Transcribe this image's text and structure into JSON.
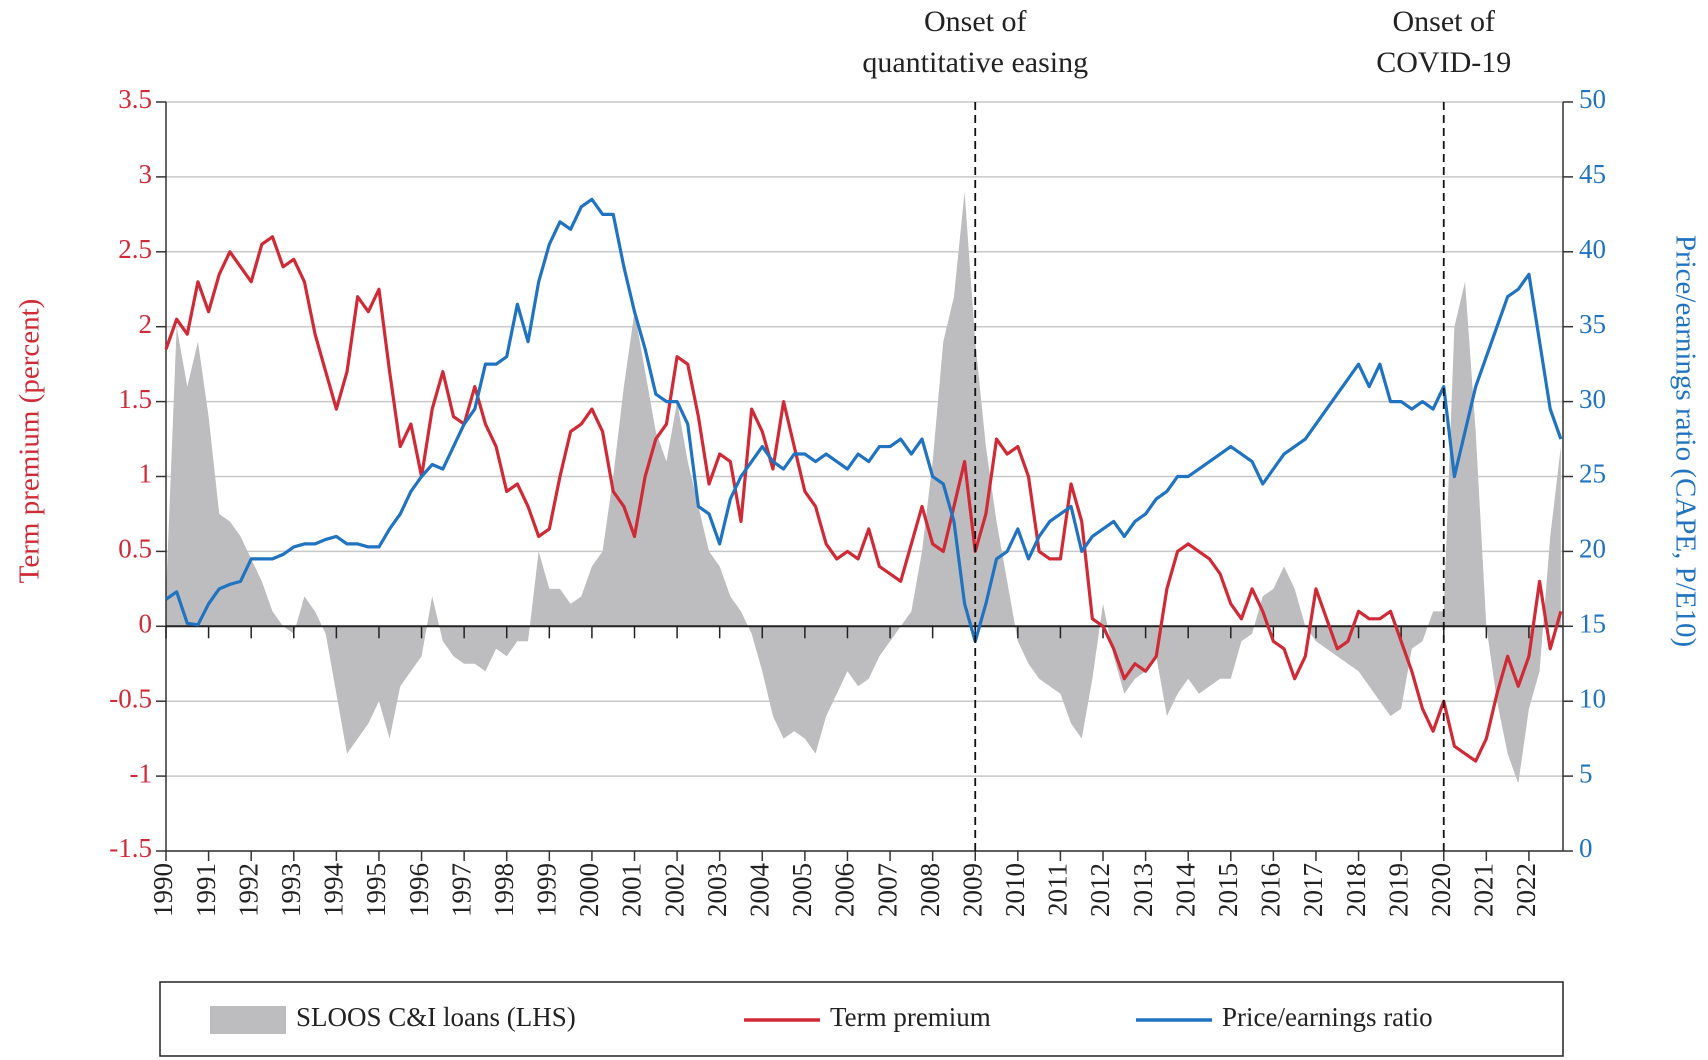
{
  "chart_data": {
    "type": "line",
    "left_axis_label": "Term premium (percent)",
    "right_axis_label": "Price/earnings ratio (CAPE, P/E10)",
    "x": [
      1990,
      1990.25,
      1990.5,
      1990.75,
      1991,
      1991.25,
      1991.5,
      1991.75,
      1992,
      1992.25,
      1992.5,
      1992.75,
      1993,
      1993.25,
      1993.5,
      1993.75,
      1994,
      1994.25,
      1994.5,
      1994.75,
      1995,
      1995.25,
      1995.5,
      1995.75,
      1996,
      1996.25,
      1996.5,
      1996.75,
      1997,
      1997.25,
      1997.5,
      1997.75,
      1998,
      1998.25,
      1998.5,
      1998.75,
      1999,
      1999.25,
      1999.5,
      1999.75,
      2000,
      2000.25,
      2000.5,
      2000.75,
      2001,
      2001.25,
      2001.5,
      2001.75,
      2002,
      2002.25,
      2002.5,
      2002.75,
      2003,
      2003.25,
      2003.5,
      2003.75,
      2004,
      2004.25,
      2004.5,
      2004.75,
      2005,
      2005.25,
      2005.5,
      2005.75,
      2006,
      2006.25,
      2006.5,
      2006.75,
      2007,
      2007.25,
      2007.5,
      2007.75,
      2008,
      2008.25,
      2008.5,
      2008.75,
      2009,
      2009.25,
      2009.5,
      2009.75,
      2010,
      2010.25,
      2010.5,
      2010.75,
      2011,
      2011.25,
      2011.5,
      2011.75,
      2012,
      2012.25,
      2012.5,
      2012.75,
      2013,
      2013.25,
      2013.5,
      2013.75,
      2014,
      2014.25,
      2014.5,
      2014.75,
      2015,
      2015.25,
      2015.5,
      2015.75,
      2016,
      2016.25,
      2016.5,
      2016.75,
      2017,
      2017.25,
      2017.5,
      2017.75,
      2018,
      2018.25,
      2018.5,
      2018.75,
      2019,
      2019.25,
      2019.5,
      2019.75,
      2020,
      2020.25,
      2020.5,
      2020.75,
      2021,
      2021.25,
      2021.5,
      2021.75,
      2022,
      2022.25,
      2022.5,
      2022.75
    ],
    "series": [
      {
        "name": "SLOOS C&I loans (LHS)",
        "type": "area",
        "color": "#bdbdbf",
        "axis": "y",
        "values": [
          0.2,
          2.0,
          1.6,
          1.9,
          1.4,
          0.75,
          0.7,
          0.6,
          0.45,
          0.3,
          0.1,
          0.0,
          -0.05,
          0.2,
          0.1,
          -0.05,
          -0.45,
          -0.85,
          -0.75,
          -0.65,
          -0.5,
          -0.75,
          -0.4,
          -0.3,
          -0.2,
          0.2,
          -0.1,
          -0.2,
          -0.25,
          -0.25,
          -0.3,
          -0.15,
          -0.2,
          -0.1,
          -0.1,
          0.5,
          0.25,
          0.25,
          0.15,
          0.2,
          0.4,
          0.5,
          1.0,
          1.6,
          2.1,
          1.7,
          1.3,
          1.1,
          1.5,
          1.1,
          0.8,
          0.5,
          0.4,
          0.2,
          0.1,
          -0.05,
          -0.3,
          -0.6,
          -0.75,
          -0.7,
          -0.75,
          -0.85,
          -0.6,
          -0.45,
          -0.3,
          -0.4,
          -0.35,
          -0.2,
          -0.1,
          0.0,
          0.1,
          0.5,
          1.1,
          1.9,
          2.2,
          2.9,
          1.9,
          1.2,
          0.7,
          0.3,
          -0.1,
          -0.25,
          -0.35,
          -0.4,
          -0.45,
          -0.65,
          -0.75,
          -0.35,
          0.15,
          -0.2,
          -0.45,
          -0.35,
          -0.3,
          -0.2,
          -0.6,
          -0.45,
          -0.35,
          -0.45,
          -0.4,
          -0.35,
          -0.35,
          -0.1,
          -0.05,
          0.2,
          0.25,
          0.4,
          0.25,
          0.0,
          -0.1,
          -0.15,
          -0.2,
          -0.25,
          -0.3,
          -0.4,
          -0.5,
          -0.6,
          -0.55,
          -0.15,
          -0.1,
          0.1,
          0.1,
          2.0,
          2.3,
          1.3,
          0.0,
          -0.5,
          -0.85,
          -1.05,
          -0.55,
          -0.3,
          0.6,
          1.2
        ]
      },
      {
        "name": "Term premium",
        "type": "line",
        "color": "#cf2a36",
        "axis": "y",
        "values": [
          1.85,
          2.05,
          1.95,
          2.3,
          2.1,
          2.35,
          2.5,
          2.4,
          2.3,
          2.55,
          2.6,
          2.4,
          2.45,
          2.3,
          1.95,
          1.7,
          1.45,
          1.7,
          2.2,
          2.1,
          2.25,
          1.7,
          1.2,
          1.35,
          1.0,
          1.45,
          1.7,
          1.4,
          1.35,
          1.6,
          1.35,
          1.2,
          0.9,
          0.95,
          0.8,
          0.6,
          0.65,
          1.0,
          1.3,
          1.35,
          1.45,
          1.3,
          0.9,
          0.8,
          0.6,
          1.0,
          1.25,
          1.35,
          1.8,
          1.75,
          1.4,
          0.95,
          1.15,
          1.1,
          0.7,
          1.45,
          1.3,
          1.05,
          1.5,
          1.2,
          0.9,
          0.8,
          0.55,
          0.45,
          0.5,
          0.45,
          0.65,
          0.4,
          0.35,
          0.3,
          0.55,
          0.8,
          0.55,
          0.5,
          0.8,
          1.1,
          0.5,
          0.75,
          1.25,
          1.15,
          1.2,
          1.0,
          0.5,
          0.45,
          0.45,
          0.95,
          0.7,
          0.05,
          0.0,
          -0.15,
          -0.35,
          -0.25,
          -0.3,
          -0.2,
          0.25,
          0.5,
          0.55,
          0.5,
          0.45,
          0.35,
          0.15,
          0.05,
          0.25,
          0.1,
          -0.1,
          -0.15,
          -0.35,
          -0.2,
          0.25,
          0.05,
          -0.15,
          -0.1,
          0.1,
          0.05,
          0.05,
          0.1,
          -0.1,
          -0.3,
          -0.55,
          -0.7,
          -0.5,
          -0.8,
          -0.85,
          -0.9,
          -0.75,
          -0.45,
          -0.2,
          -0.4,
          -0.2,
          0.3,
          -0.15,
          0.1
        ]
      },
      {
        "name": "Price/earnings ratio",
        "type": "line",
        "color": "#1f73c0",
        "axis": "y2",
        "values": [
          16.8,
          17.3,
          15.2,
          15.1,
          16.5,
          17.5,
          17.8,
          18.0,
          19.5,
          19.5,
          19.5,
          19.8,
          20.3,
          20.5,
          20.5,
          20.8,
          21.0,
          20.5,
          20.5,
          20.3,
          20.3,
          21.5,
          22.5,
          24.0,
          25.0,
          25.8,
          25.5,
          27.0,
          28.5,
          29.5,
          32.5,
          32.5,
          33.0,
          36.5,
          34.0,
          38.0,
          40.5,
          42.0,
          41.5,
          43.0,
          43.5,
          42.5,
          42.5,
          39.0,
          36.0,
          33.5,
          30.5,
          30.0,
          30.0,
          28.5,
          23.0,
          22.5,
          20.5,
          23.5,
          25.0,
          26.0,
          27.0,
          26.0,
          25.5,
          26.5,
          26.5,
          26.0,
          26.5,
          26.0,
          25.5,
          26.5,
          26.0,
          27.0,
          27.0,
          27.5,
          26.5,
          27.5,
          25.0,
          24.5,
          22.0,
          16.5,
          14.0,
          16.5,
          19.5,
          20.0,
          21.5,
          19.5,
          21.0,
          22.0,
          22.5,
          23.0,
          20.0,
          21.0,
          21.5,
          22.0,
          21.0,
          22.0,
          22.5,
          23.5,
          24.0,
          25.0,
          25.0,
          25.5,
          26.0,
          26.5,
          27.0,
          26.5,
          26.0,
          24.5,
          25.5,
          26.5,
          27.0,
          27.5,
          28.5,
          29.5,
          30.5,
          31.5,
          32.5,
          31.0,
          32.5,
          30.0,
          30.0,
          29.5,
          30.0,
          29.5,
          31.0,
          25.0,
          28.0,
          31.0,
          33.0,
          35.0,
          37.0,
          37.5,
          38.5,
          34.0,
          29.5,
          27.5
        ]
      }
    ],
    "xlim": [
      1990,
      2022.8
    ],
    "xticks": [
      1990,
      1991,
      1992,
      1993,
      1994,
      1995,
      1996,
      1997,
      1998,
      1999,
      2000,
      2001,
      2002,
      2003,
      2004,
      2005,
      2006,
      2007,
      2008,
      2009,
      2010,
      2011,
      2012,
      2013,
      2014,
      2015,
      2016,
      2017,
      2018,
      2019,
      2020,
      2021,
      2022
    ],
    "ylim": [
      -1.5,
      3.5
    ],
    "yticks": [
      -1.5,
      -1,
      -0.5,
      0,
      0.5,
      1,
      1.5,
      2,
      2.5,
      3,
      3.5
    ],
    "y2lim": [
      0,
      50
    ],
    "y2ticks": [
      0,
      5,
      10,
      15,
      20,
      25,
      30,
      35,
      40,
      45,
      50
    ],
    "annotations": [
      {
        "x": 2009,
        "lines": [
          "Onset of",
          "quantitative easing"
        ]
      },
      {
        "x": 2020,
        "lines": [
          "Onset of",
          "COVID-19"
        ]
      }
    ],
    "grid": true,
    "legend": "bottom"
  }
}
